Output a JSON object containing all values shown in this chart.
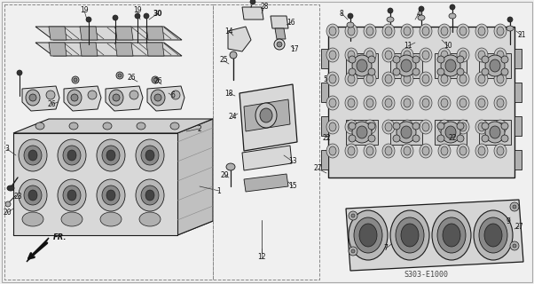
{
  "fig_width": 6.02,
  "fig_height": 3.2,
  "dpi": 100,
  "bg_color": "#f0f0f0",
  "line_color": "#1a1a1a",
  "light_gray": "#d8d8d8",
  "mid_gray": "#b0b0b0",
  "dark_gray": "#888888",
  "diagram_code": "S303-E1000",
  "label_fontsize": 5.5,
  "bold_labels": [
    30
  ],
  "text_color": "#111111"
}
